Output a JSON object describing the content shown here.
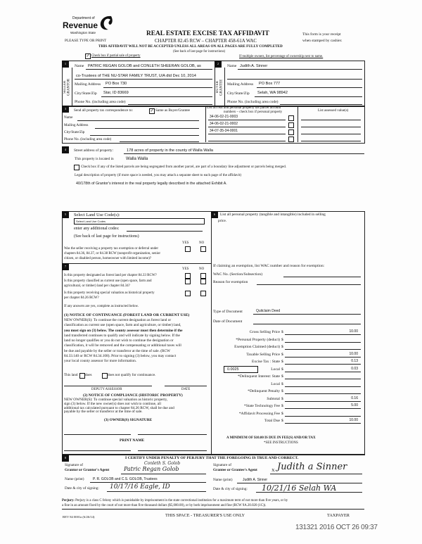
{
  "header": {
    "logo_line1": "Department of",
    "logo_line2": "Revenue",
    "logo_line3": "Washington State",
    "title": "REAL ESTATE EXCISE TAX AFFIDAVIT",
    "please": "PLEASE TYPE OR PRINT",
    "chapter": "CHAPTER 82.45 RCW – CHAPTER 458-61A WAC",
    "receipt1": "This form is your receipt",
    "receipt2": "when stamped by cashier.",
    "warning": "THIS AFFIDAVIT WILL NOT BE ACCEPTED UNLESS ALL AREAS ON ALL PAGES ARE FULLY COMPLETED",
    "see_back": "(See back of last page for instructions)",
    "partial_label": "Check box if partial sale of property",
    "partial_checked": true,
    "owners_note": "If multiple owners, list percentage of ownership next to name."
  },
  "seller": {
    "side_label": "SELLER GRANTOR",
    "name_label": "Name",
    "name1": "PATRIC REGAN GOLOB and CONLETH SHEERAN GOLOB, as",
    "name2": "co-Trustees of THE NU-STAR FAMILY TRUST, U/A dtd Dec 10, 2014",
    "mail_label": "Mailing Address",
    "mail": "PO Box 730",
    "city_label": "City/State/Zip",
    "city": "Star, ID 83669",
    "phone_label": "Phone No. (including area code)"
  },
  "buyer": {
    "side_label": "BUYER GRANTEE",
    "name_label": "Name",
    "name1": "Judith A. Sinner",
    "mail_label": "Mailing Address",
    "mail": "PO Box 777",
    "city_label": "City/State/Zip",
    "city": "Selah, WA 98942",
    "phone_label": "Phone No. (including area code)"
  },
  "section3": {
    "send_label": "Send all property tax correspondence to:",
    "same_label": "Same as Buyer/Grantee",
    "same_checked": true,
    "name_label": "Name",
    "mail_label": "Mailing Address",
    "city_label": "City/State/Zip",
    "phone_label": "Phone No. (including area code)",
    "parcel_header1": "List all real and personal property tax parcel account",
    "parcel_header2": "numbers – check box if personal property",
    "parcels": [
      "34-06-02-21-0003",
      "34-06-02-21-0002",
      "34-07-35-34-0001",
      ""
    ],
    "assessed_header": "List assessed value(s)"
  },
  "section4": {
    "street_label": "Street address of property:",
    "street": "178 acres of property in the county of Walla Walla",
    "located_label": "This property is located in",
    "located": "Walla Walla",
    "segregate_label": "Check box if any of the listed parcels are being segregated from another parcel, are part of a boundary line adjustment or parcels being merged.",
    "legal_label": "Legal description of property (if more space is needed, you may attach a separate sheet to each page of the affidavit)",
    "legal": "40/178th of Grantor's interest in the real property legally described in the attached Exhibit A."
  },
  "section5": {
    "land_use_label": "Select Land Use Code(s):",
    "land_use_value": "Select Land Use Codes",
    "additional": "enter any additional codes:",
    "see_back": "(See back of last page for instructions)",
    "yes": "YES",
    "no": "NO",
    "question_lines": [
      "Was the seller receiving a property tax exemption or deferral under",
      "chapters 84.36, 84.37, or 84.38 RCW (nonprofit organization, senior",
      "citizen, or disabled person, homeowner with limited income)?"
    ]
  },
  "section7": {
    "yes": "YES",
    "no": "NO",
    "q1": "Is this property designated as forest land per chapter 84.33 RCW?",
    "q2": [
      "Is this property classified as current use (open space, farm and",
      "agricultural, or timber) land per chapter 84.34?"
    ],
    "q3": [
      "Is this property receiving special valuation as historical property",
      "per chapter 84.26 RCW?"
    ],
    "if_yes": "If any answers are yes, complete as instructed below.",
    "notice1_title": "(1) NOTICE OF CONTINUANCE  (FOREST LAND OR CURRENT USE)",
    "notice1": [
      "NEW OWNER(S): To continue the current designation as forest land or",
      "classification as current use (open space, farm and agriculture, or timber) land,",
      "you must sign on (3) below. The county assessor must then determine if the",
      "land transferred continues to qualify and will indicate by signing below. If the",
      "land no longer qualifies or you do not wish to continue the designation or",
      "classification, it will be removed and the compensating or additional taxes will",
      "be due and payable by the seller or transferor at the time of sale. (RCW",
      "84.33.140 or RCW 84.34.108). Prior to signing (3) below, you may contact",
      "your local county assessor for more information."
    ],
    "this_land": "This land",
    "does": "does",
    "does_not": "does not   qualify for continuance.",
    "deputy": "DEPUTY ASSESSOR",
    "date": "DATE",
    "notice2_title": "(2) NOTICE OF COMPLIANCE (HISTORIC PROPERTY)",
    "notice2": [
      "NEW OWNER(S): To continue special valuation as historic property,",
      "sign (3) below. If the new owner(s) does not wish to continue, all",
      "additional tax calculated pursuant to chapter 84.26 RCW, shall be due and",
      "payable by the seller or transferor at the time of sale."
    ],
    "owner_sig": "(3)  OWNER(S) SIGNATURE",
    "print_name": "PRINT NAME"
  },
  "section6": {
    "list_personal": "List all  personal property (tangible and intangible) included in selling",
    "price": "price.",
    "exemption": "If claiming an exemption, list WAC number and reason for exemption:",
    "wac_label": "WAC No. (Section/Subsection)",
    "reason_label": "Reason for exemption",
    "doc_type_label": "Type of Document",
    "doc_type": "Quitclaim Deed",
    "doc_date_label": "Date of Document",
    "local_rate": "0.0025",
    "rows": [
      {
        "label": "Gross Selling Price",
        "value": "10.00"
      },
      {
        "label": "*Personal Property (deduct)",
        "value": ""
      },
      {
        "label": "Exemption Claimed (deduct)",
        "value": ""
      },
      {
        "label": "Taxable Selling Price",
        "value": "10.00"
      },
      {
        "label": "Excise Tax : State",
        "value": "0.13"
      },
      {
        "label": "Local",
        "value": "0.03"
      },
      {
        "label": "*Delinquent Interest: State",
        "value": ""
      },
      {
        "label": "Local",
        "value": ""
      },
      {
        "label": "*Delinquent Penalty",
        "value": ""
      },
      {
        "label": "Subtotal",
        "value": "0.16"
      },
      {
        "label": "*State Technology Fee",
        "value": "5.00"
      },
      {
        "label": "*Affidavit Processing Fee",
        "value": ""
      },
      {
        "label": "Total Due",
        "value": "10.00"
      }
    ],
    "currency": "$",
    "minimum": "A MINIMUM OF $10.00 IS DUE IN FEE(S) AND/OR TAX",
    "see_instr": "*SEE INSTRUCTIONS"
  },
  "section8": {
    "certify": "I CERTIFY UNDER PENALTY OF PERJURY THAT THE FOREGOING IS TRUE AND CORRECT.",
    "grantor_sig1": "Signature of",
    "grantor_sig2": "Grantor or Grantor's Agent",
    "grantor_signature": "Patric Regan Golob",
    "grantor_signature2": "Conleth S. Golob",
    "grantor_name_label": "Name (print)",
    "grantor_name": "P. R. GOLOB and C.S. GOLOB, Trustees",
    "grantor_date_label": "Date & city of signing:",
    "grantor_date": "10/17/16 Eagle, ID",
    "grantee_sig1": "Signature of",
    "grantee_sig2": "Grantee or Grantee's Agent",
    "grantee_x": "X",
    "grantee_signature": "Judith a Sinner",
    "grantee_name_label": "Name (print)",
    "grantee_name": "Judith A. Sinner",
    "grantee_date_label": "Date & city of signing:",
    "grantee_date": "10/21/16  Selah WA"
  },
  "footer": {
    "perjury_label": "Perjury:",
    "perjury1": "Perjury is a class C felony which is punishable by imprisonment in the state correctional institution for a maximum term of not more than five years, or by",
    "perjury2": "a fine in an amount fixed by the court of not more than five thousand dollars ($5,000.00), or by both imprisonment and fine (RCW 9A.20.020 (1C)).",
    "rev": "REV 84 0001a (6/26/14)",
    "treasurer": "THIS SPACE - TREASURER'S USE ONLY",
    "taxpayer": "TAXPAYER",
    "stamp": "131321 2016 OCT 26 09:37"
  }
}
